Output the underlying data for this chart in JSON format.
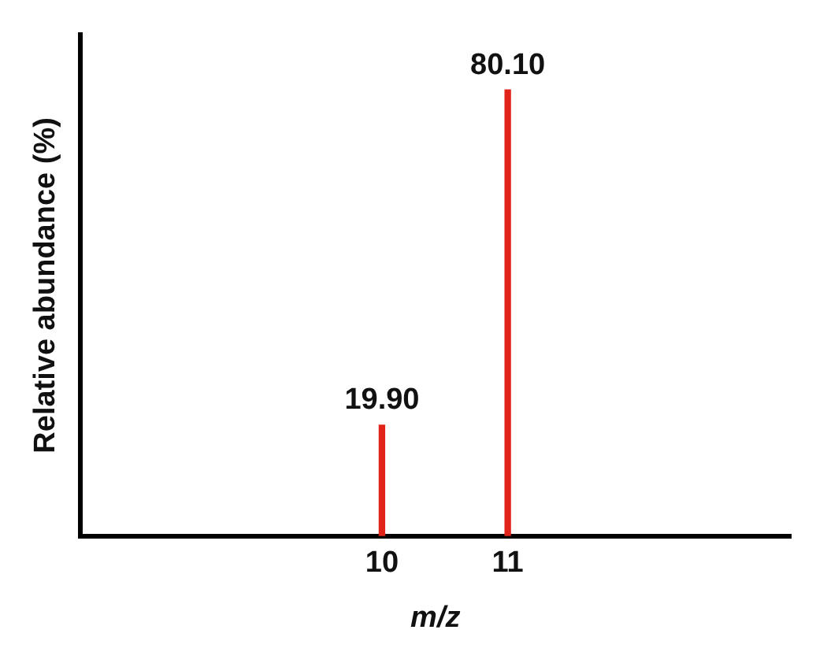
{
  "chart_data": {
    "type": "bar",
    "xlabel": "m/z",
    "ylabel": "Relative abundance (%)",
    "x": [
      10,
      11
    ],
    "values": [
      19.9,
      80.1
    ],
    "color": "#e2231a",
    "value_labels": [
      "19.90",
      "80.10"
    ],
    "xlim": [
      7.6,
      13.25
    ],
    "xticks": [
      10,
      11
    ],
    "tick_labels": "x"
  }
}
